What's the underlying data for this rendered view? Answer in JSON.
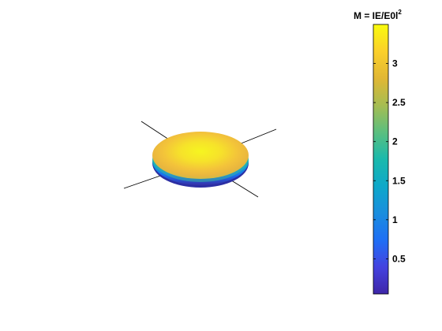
{
  "chart_data": {
    "type": "surface3d",
    "description_shape": "flattened spheroid (oblate) colored by field magnitude, with crossing axis lines",
    "colorbar": {
      "title_main": "M = IE/E0l",
      "title_superscript": "2",
      "colormap": "parula",
      "range": [
        0.05,
        3.5
      ],
      "ticks": [
        0.5,
        1,
        1.5,
        2,
        2.5,
        3
      ],
      "tick_labels": [
        "0.5",
        "1",
        "1.5",
        "2",
        "2.5",
        "3"
      ]
    },
    "surface": {
      "top_value": 3.4,
      "rim_value": 2.2,
      "bottom_value": 0.2
    }
  }
}
